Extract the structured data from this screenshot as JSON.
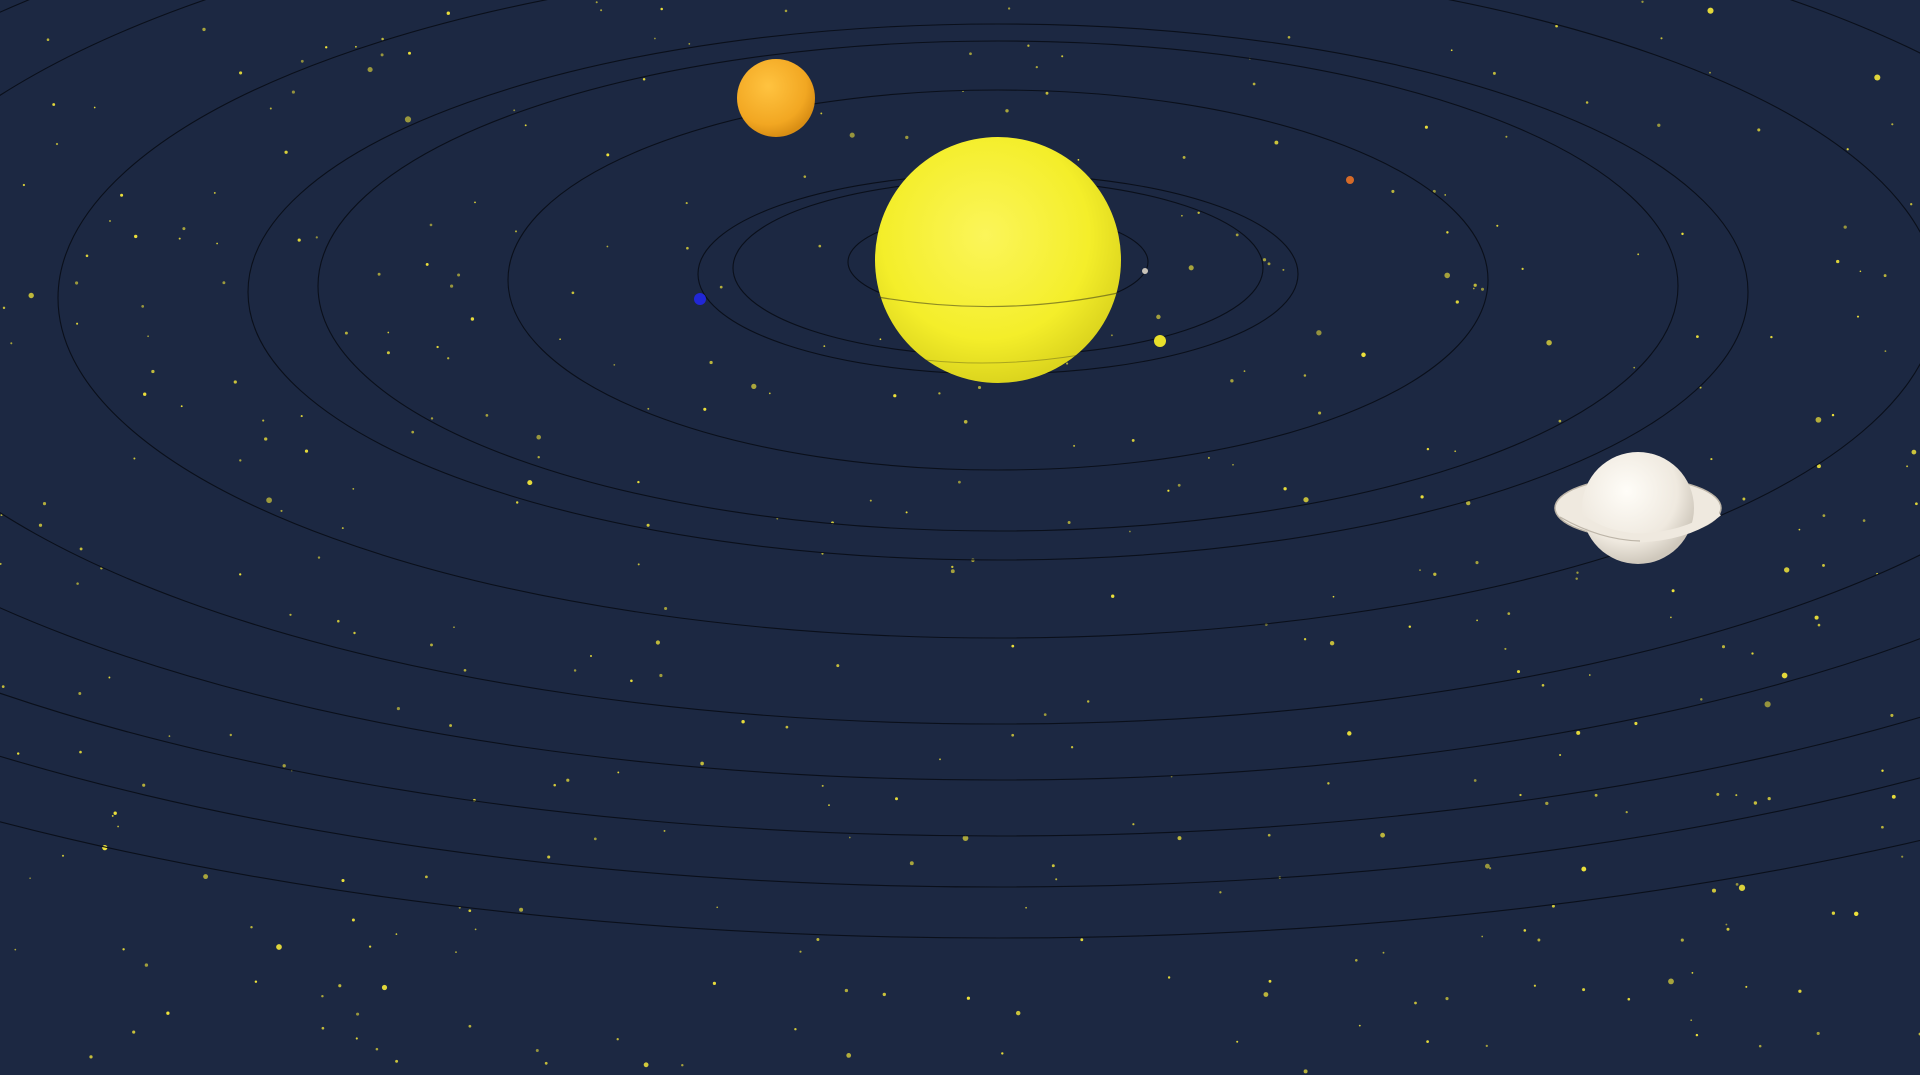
{
  "scene": {
    "background_color": "#1c2842",
    "orbit_color": "#0a0f1a",
    "star_color": "#f2e63a"
  },
  "sun": {
    "name": "sun",
    "color": "#f4ee2a"
  },
  "planets": [
    {
      "name": "mercury",
      "color": "#c9c3b8"
    },
    {
      "name": "venus",
      "color": "#e9e02b"
    },
    {
      "name": "earth",
      "color": "#2127d6"
    },
    {
      "name": "mars",
      "color": "#d56a28"
    },
    {
      "name": "jupiter",
      "color": "#f2a722"
    },
    {
      "name": "saturn",
      "color": "#efe9df"
    }
  ]
}
